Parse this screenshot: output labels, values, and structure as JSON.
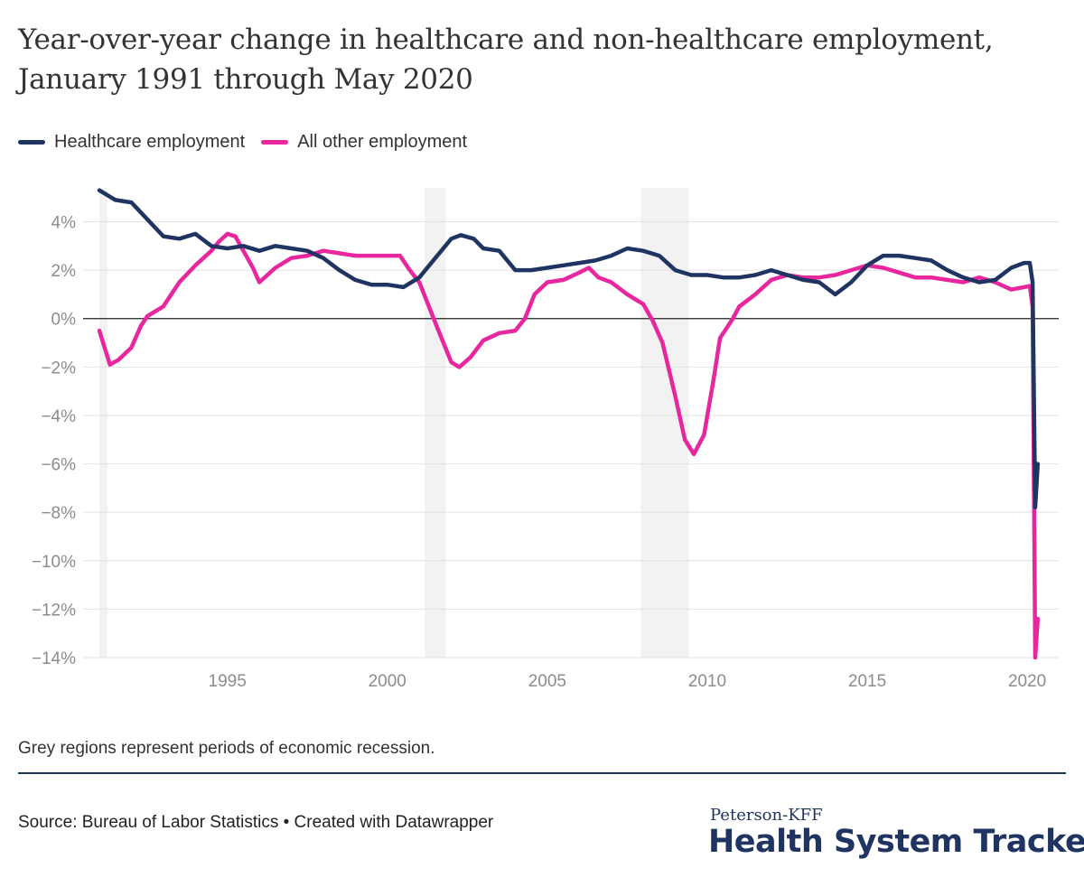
{
  "title": "Year-over-year change in healthcare and non-healthcare employment, January 1991 through May 2020",
  "note": "Grey regions represent periods of economic recession.",
  "source": "Source: Bureau of Labor Statistics • Created with Datawrapper",
  "brand": {
    "small": "Peterson-KFF",
    "big": "Health System Tracker"
  },
  "colors": {
    "healthcare": "#1f3461",
    "other": "#e8269e",
    "recession": "#f2f2f2",
    "grid": "#e2e2e2",
    "zero": "#222222",
    "tick": "#8c8c8c"
  },
  "chart_data": {
    "type": "line",
    "xlim": [
      1991.0,
      2020.42
    ],
    "ylim": [
      -14,
      5.4
    ],
    "x_ticks": [
      1995,
      2000,
      2005,
      2010,
      2015,
      2020
    ],
    "x_tick_labels": [
      "1995",
      "2000",
      "2005",
      "2010",
      "2015",
      "2020"
    ],
    "y_ticks": [
      4,
      2,
      0,
      -2,
      -4,
      -6,
      -8,
      -10,
      -12,
      -14
    ],
    "y_tick_labels": [
      "4%",
      "2%",
      "0%",
      "−2%",
      "−4%",
      "−6%",
      "−8%",
      "−10%",
      "−12%",
      "−14%"
    ],
    "grid": true,
    "legend_position": "top-left",
    "recessions": [
      [
        1991.0,
        1991.25
      ],
      [
        2001.17,
        2001.83
      ],
      [
        2007.92,
        2009.42
      ]
    ],
    "series": [
      {
        "name": "Healthcare employment",
        "color": "#1f3461",
        "points": [
          [
            1991.0,
            5.3
          ],
          [
            1991.5,
            4.9
          ],
          [
            1992.0,
            4.8
          ],
          [
            1992.5,
            4.1
          ],
          [
            1993.0,
            3.4
          ],
          [
            1993.5,
            3.3
          ],
          [
            1994.0,
            3.5
          ],
          [
            1994.5,
            3.0
          ],
          [
            1995.0,
            2.9
          ],
          [
            1995.5,
            3.0
          ],
          [
            1996.0,
            2.8
          ],
          [
            1996.5,
            3.0
          ],
          [
            1997.0,
            2.9
          ],
          [
            1997.5,
            2.8
          ],
          [
            1998.0,
            2.5
          ],
          [
            1998.5,
            2.0
          ],
          [
            1999.0,
            1.6
          ],
          [
            1999.5,
            1.4
          ],
          [
            2000.0,
            1.4
          ],
          [
            2000.5,
            1.3
          ],
          [
            2001.0,
            1.7
          ],
          [
            2001.5,
            2.5
          ],
          [
            2002.0,
            3.3
          ],
          [
            2002.3,
            3.45
          ],
          [
            2002.7,
            3.3
          ],
          [
            2003.0,
            2.9
          ],
          [
            2003.5,
            2.8
          ],
          [
            2004.0,
            2.0
          ],
          [
            2004.5,
            2.0
          ],
          [
            2005.0,
            2.1
          ],
          [
            2005.5,
            2.2
          ],
          [
            2006.0,
            2.3
          ],
          [
            2006.5,
            2.4
          ],
          [
            2007.0,
            2.6
          ],
          [
            2007.5,
            2.9
          ],
          [
            2008.0,
            2.8
          ],
          [
            2008.5,
            2.6
          ],
          [
            2009.0,
            2.0
          ],
          [
            2009.5,
            1.8
          ],
          [
            2010.0,
            1.8
          ],
          [
            2010.5,
            1.7
          ],
          [
            2011.0,
            1.7
          ],
          [
            2011.5,
            1.8
          ],
          [
            2012.0,
            2.0
          ],
          [
            2012.5,
            1.8
          ],
          [
            2013.0,
            1.6
          ],
          [
            2013.5,
            1.5
          ],
          [
            2014.0,
            1.0
          ],
          [
            2014.5,
            1.5
          ],
          [
            2015.0,
            2.2
          ],
          [
            2015.5,
            2.6
          ],
          [
            2016.0,
            2.6
          ],
          [
            2016.5,
            2.5
          ],
          [
            2017.0,
            2.4
          ],
          [
            2017.5,
            2.0
          ],
          [
            2018.0,
            1.7
          ],
          [
            2018.5,
            1.5
          ],
          [
            2019.0,
            1.6
          ],
          [
            2019.5,
            2.1
          ],
          [
            2019.9,
            2.3
          ],
          [
            2020.08,
            2.3
          ],
          [
            2020.17,
            1.5
          ],
          [
            2020.25,
            -7.8
          ],
          [
            2020.33,
            -6.0
          ]
        ]
      },
      {
        "name": "All other employment",
        "color": "#e8269e",
        "points": [
          [
            1991.0,
            -0.5
          ],
          [
            1991.33,
            -1.9
          ],
          [
            1991.6,
            -1.7
          ],
          [
            1992.0,
            -1.2
          ],
          [
            1992.3,
            -0.3
          ],
          [
            1992.5,
            0.1
          ],
          [
            1993.0,
            0.5
          ],
          [
            1993.5,
            1.5
          ],
          [
            1994.0,
            2.2
          ],
          [
            1994.5,
            2.8
          ],
          [
            1994.75,
            3.2
          ],
          [
            1995.0,
            3.5
          ],
          [
            1995.25,
            3.4
          ],
          [
            1995.5,
            2.8
          ],
          [
            1995.8,
            2.1
          ],
          [
            1996.0,
            1.5
          ],
          [
            1996.5,
            2.1
          ],
          [
            1997.0,
            2.5
          ],
          [
            1997.5,
            2.6
          ],
          [
            1998.0,
            2.8
          ],
          [
            1998.5,
            2.7
          ],
          [
            1999.0,
            2.6
          ],
          [
            1999.5,
            2.6
          ],
          [
            2000.0,
            2.6
          ],
          [
            2000.4,
            2.6
          ],
          [
            2000.7,
            2.0
          ],
          [
            2001.0,
            1.5
          ],
          [
            2001.3,
            0.5
          ],
          [
            2001.6,
            -0.5
          ],
          [
            2002.0,
            -1.8
          ],
          [
            2002.25,
            -2.0
          ],
          [
            2002.6,
            -1.6
          ],
          [
            2003.0,
            -0.9
          ],
          [
            2003.5,
            -0.6
          ],
          [
            2004.0,
            -0.5
          ],
          [
            2004.3,
            0.0
          ],
          [
            2004.6,
            1.0
          ],
          [
            2005.0,
            1.5
          ],
          [
            2005.5,
            1.6
          ],
          [
            2006.0,
            1.9
          ],
          [
            2006.3,
            2.1
          ],
          [
            2006.6,
            1.7
          ],
          [
            2007.0,
            1.5
          ],
          [
            2007.5,
            1.0
          ],
          [
            2008.0,
            0.6
          ],
          [
            2008.3,
            -0.1
          ],
          [
            2008.6,
            -1.0
          ],
          [
            2009.0,
            -3.2
          ],
          [
            2009.3,
            -5.0
          ],
          [
            2009.58,
            -5.6
          ],
          [
            2009.9,
            -4.8
          ],
          [
            2010.2,
            -2.5
          ],
          [
            2010.4,
            -0.8
          ],
          [
            2010.8,
            0.0
          ],
          [
            2011.0,
            0.5
          ],
          [
            2011.5,
            1.0
          ],
          [
            2012.0,
            1.6
          ],
          [
            2012.5,
            1.8
          ],
          [
            2013.0,
            1.7
          ],
          [
            2013.5,
            1.7
          ],
          [
            2014.0,
            1.8
          ],
          [
            2014.5,
            2.0
          ],
          [
            2015.0,
            2.2
          ],
          [
            2015.5,
            2.1
          ],
          [
            2016.0,
            1.9
          ],
          [
            2016.5,
            1.7
          ],
          [
            2017.0,
            1.7
          ],
          [
            2017.5,
            1.6
          ],
          [
            2018.0,
            1.5
          ],
          [
            2018.5,
            1.7
          ],
          [
            2019.0,
            1.5
          ],
          [
            2019.5,
            1.2
          ],
          [
            2019.9,
            1.3
          ],
          [
            2020.08,
            1.35
          ],
          [
            2020.17,
            0.5
          ],
          [
            2020.25,
            -14.0
          ],
          [
            2020.33,
            -12.4
          ]
        ]
      }
    ]
  }
}
